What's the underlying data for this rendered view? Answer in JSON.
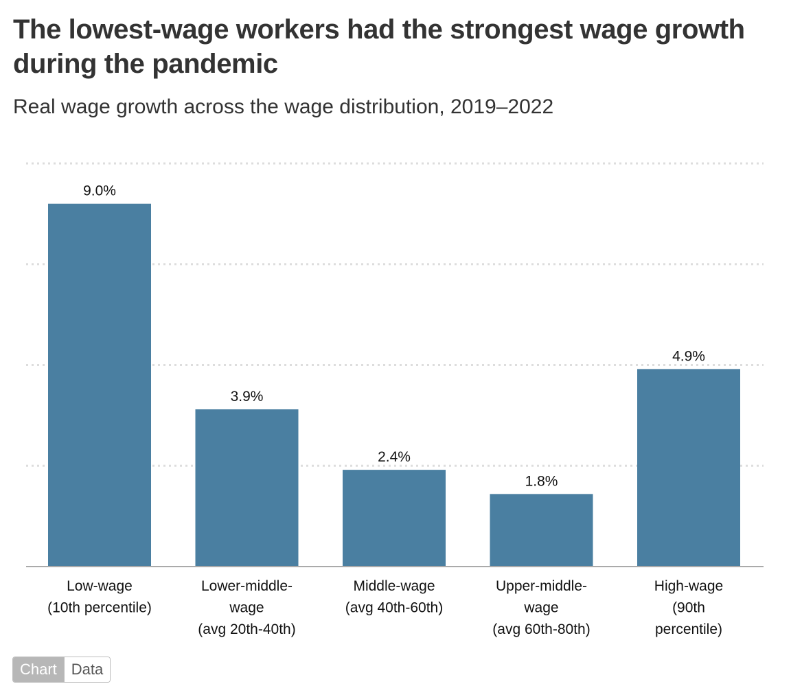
{
  "header": {
    "title": "The lowest-wage workers had the strongest wage growth during the pandemic",
    "subtitle": "Real wage growth across the wage distribution, 2019–2022"
  },
  "chart_data": {
    "type": "bar",
    "title": "The lowest-wage workers had the strongest wage growth during the pandemic",
    "subtitle": "Real wage growth across the wage distribution, 2019–2022",
    "xlabel": "",
    "ylabel": "",
    "categories": [
      [
        "Low-wage",
        "(10th percentile)"
      ],
      [
        "Lower-middle-",
        "wage",
        "(avg 20th-40th)"
      ],
      [
        "Middle-wage",
        "(avg 40th-60th)"
      ],
      [
        "Upper-middle-",
        "wage",
        "(avg 60th-80th)"
      ],
      [
        "High-wage",
        "(90th",
        "percentile)"
      ]
    ],
    "values": [
      9.0,
      3.9,
      2.4,
      1.8,
      4.9
    ],
    "data_labels": [
      "9.0%",
      "3.9%",
      "2.4%",
      "1.8%",
      "4.9%"
    ],
    "unit": "%",
    "ylim": [
      0,
      10
    ],
    "gridlines": [
      2.5,
      5,
      7.5,
      10
    ],
    "grid": true,
    "legend": "none",
    "bar_color": "#4a7fa1"
  },
  "view_toggle": {
    "chart_label": "Chart",
    "data_label": "Data"
  },
  "colors": {
    "bar": "#4a7fa1",
    "grid": "#dddddd",
    "baseline": "#aaaaaa",
    "title": "#333333"
  }
}
